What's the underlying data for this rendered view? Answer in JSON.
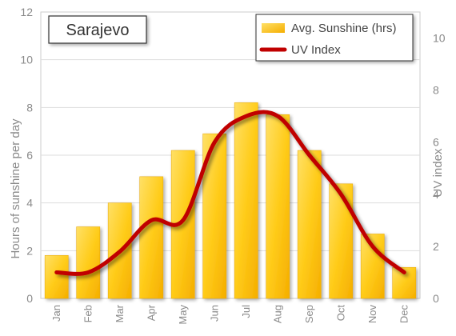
{
  "chart_data": {
    "type": "bar",
    "title": "Sarajevo",
    "categories": [
      "Jan",
      "Feb",
      "Mar",
      "Apr",
      "May",
      "Jun",
      "Jul",
      "Aug",
      "Sep",
      "Oct",
      "Nov",
      "Dec"
    ],
    "series": [
      {
        "name": "Avg. Sunshine (hrs)",
        "type": "bar",
        "axis": "left",
        "values": [
          1.8,
          3.0,
          4.0,
          5.1,
          6.2,
          6.9,
          8.2,
          7.7,
          6.2,
          4.8,
          2.7,
          1.3
        ]
      },
      {
        "name": "UV Index",
        "type": "line",
        "axis": "right",
        "values": [
          1.0,
          1.0,
          1.8,
          3.0,
          3.0,
          6.0,
          7.0,
          7.0,
          5.5,
          4.0,
          2.0,
          1.0
        ]
      }
    ],
    "ylabel": "Hours of sunshine per day",
    "y2label": "UV index",
    "ylim": [
      0,
      12
    ],
    "y2lim": [
      0,
      11
    ],
    "yticks": [
      0,
      2,
      4,
      6,
      8,
      10,
      12
    ],
    "y2ticks": [
      0,
      2,
      4,
      6,
      8,
      10
    ],
    "grid": true,
    "legend_position": "top-right",
    "colors": {
      "bar_light": "#ffd84a",
      "bar_dark": "#f5b400",
      "line": "#c00000",
      "grid": "#dddddd",
      "text": "#8a8a8a"
    }
  }
}
